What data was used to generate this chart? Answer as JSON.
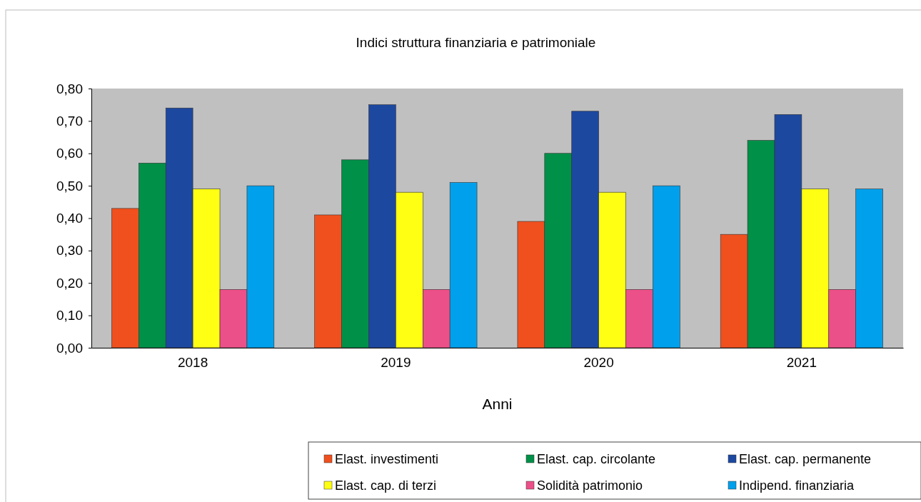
{
  "chart_data": {
    "type": "bar",
    "title": "Indici struttura finanziaria e patrimoniale",
    "xlabel": "Anni",
    "categories": [
      "2018",
      "2019",
      "2020",
      "2021"
    ],
    "series": [
      {
        "name": "Elast. investimenti",
        "color": "#f0501e",
        "values": [
          0.43,
          0.41,
          0.39,
          0.35
        ]
      },
      {
        "name": "Elast. cap. circolante",
        "color": "#009048",
        "values": [
          0.57,
          0.58,
          0.6,
          0.64
        ]
      },
      {
        "name": "Elast. cap. permanente",
        "color": "#1c48a0",
        "values": [
          0.74,
          0.75,
          0.73,
          0.72
        ]
      },
      {
        "name": "Elast. cap. di terzi",
        "color": "#ffff14",
        "values": [
          0.49,
          0.48,
          0.48,
          0.49
        ]
      },
      {
        "name": "Solidità patrimonio",
        "color": "#ec5088",
        "values": [
          0.18,
          0.18,
          0.18,
          0.18
        ]
      },
      {
        "name": "Indipend. finanziaria",
        "color": "#00a0ec",
        "values": [
          0.5,
          0.51,
          0.5,
          0.49
        ]
      }
    ],
    "ylim": [
      0,
      0.8
    ],
    "yticks": [
      {
        "value": 0,
        "label": "0,00"
      },
      {
        "value": 0.1,
        "label": "0,10"
      },
      {
        "value": 0.2,
        "label": "0,20"
      },
      {
        "value": 0.3,
        "label": "0,30"
      },
      {
        "value": 0.4,
        "label": "0,40"
      },
      {
        "value": 0.5,
        "label": "0,50"
      },
      {
        "value": 0.6,
        "label": "0,60"
      },
      {
        "value": 0.7,
        "label": "0,70"
      },
      {
        "value": 0.8,
        "label": "0,80"
      }
    ],
    "grid": false,
    "legend": "bottom right"
  }
}
